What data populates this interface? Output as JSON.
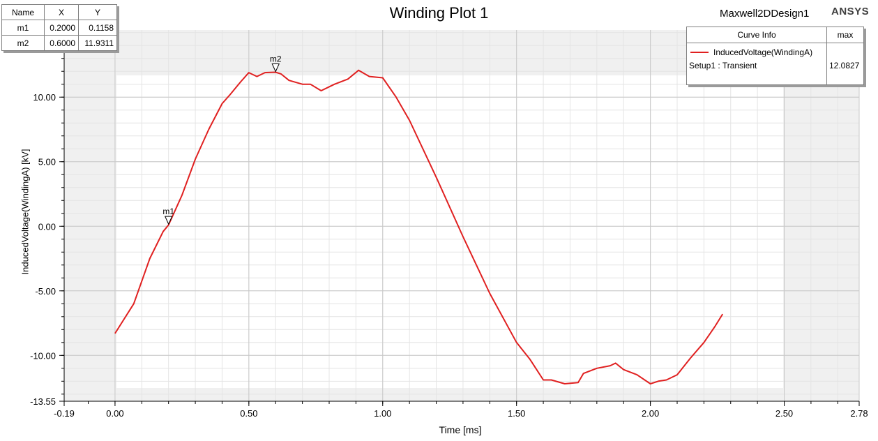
{
  "title": "Winding Plot 1",
  "design_name": "Maxwell2DDesign1",
  "brand": "ANSYS",
  "colors": {
    "curve": "#e02020",
    "background": "#f0f0f0",
    "plot_area": "#ffffff",
    "grid": "#dadada"
  },
  "markers_table": {
    "headers": [
      "Name",
      "X",
      "Y"
    ],
    "rows": [
      {
        "name": "m1",
        "x": "0.2000",
        "y": "0.1158"
      },
      {
        "name": "m2",
        "x": "0.6000",
        "y": "11.9311"
      }
    ]
  },
  "legend": {
    "header_left": "Curve Info",
    "header_right": "max",
    "series_name": "InducedVoltage(WindingA)",
    "setup": "Setup1 : Transient",
    "max_value": "12.0827"
  },
  "chart_data": {
    "type": "line",
    "title": "Winding Plot 1",
    "xlabel": "Time [ms]",
    "ylabel": "InducedVoltage(WindingA) [kV]",
    "xlim": [
      -0.19,
      2.78
    ],
    "ylim": [
      -13.55,
      15.2
    ],
    "xticks": [
      "-0.19",
      "0.00",
      "0.50",
      "1.00",
      "1.50",
      "2.00",
      "2.50",
      "2.78"
    ],
    "xtick_values": [
      -0.19,
      0.0,
      0.5,
      1.0,
      1.5,
      2.0,
      2.5,
      2.78
    ],
    "yticks": [
      "10.00",
      "5.00",
      "0.00",
      "-5.00",
      "-10.00",
      "-13.55"
    ],
    "ytick_values": [
      10.0,
      5.0,
      0.0,
      -5.0,
      -10.0,
      -13.55
    ],
    "grid": true,
    "legend_position": "top-right",
    "series": [
      {
        "name": "InducedVoltage(WindingA)",
        "x": [
          0.0,
          0.07,
          0.13,
          0.18,
          0.2,
          0.25,
          0.3,
          0.35,
          0.4,
          0.43,
          0.47,
          0.5,
          0.53,
          0.56,
          0.6,
          0.62,
          0.65,
          0.7,
          0.73,
          0.77,
          0.82,
          0.87,
          0.91,
          0.95,
          1.0,
          1.05,
          1.1,
          1.2,
          1.3,
          1.4,
          1.5,
          1.55,
          1.6,
          1.63,
          1.68,
          1.73,
          1.75,
          1.8,
          1.85,
          1.87,
          1.9,
          1.95,
          2.0,
          2.03,
          2.06,
          2.1,
          2.15,
          2.2,
          2.24,
          2.27
        ],
        "y": [
          -8.3,
          -6.0,
          -2.5,
          -0.4,
          0.1,
          2.4,
          5.2,
          7.5,
          9.5,
          10.2,
          11.2,
          11.9,
          11.6,
          11.9,
          11.93,
          11.8,
          11.3,
          11.0,
          11.0,
          10.5,
          11.0,
          11.4,
          12.08,
          11.6,
          11.5,
          10.0,
          8.2,
          3.8,
          -0.8,
          -5.2,
          -9.0,
          -10.3,
          -11.9,
          -11.9,
          -12.2,
          -12.1,
          -11.4,
          -11.0,
          -10.8,
          -10.6,
          -11.1,
          -11.5,
          -12.2,
          -12.0,
          -11.9,
          -11.5,
          -10.2,
          -9.0,
          -7.8,
          -6.8
        ]
      }
    ],
    "markers": [
      {
        "name": "m1",
        "x": 0.2,
        "y": 0.1158
      },
      {
        "name": "m2",
        "x": 0.6,
        "y": 11.9311
      }
    ]
  }
}
